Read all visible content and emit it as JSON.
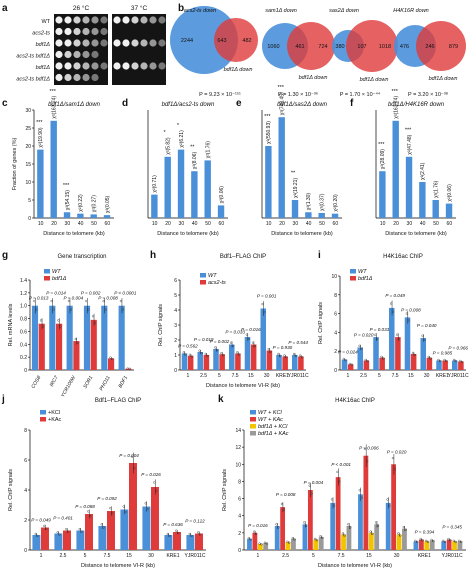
{
  "figure": "Multi-panel biology figure",
  "colors": {
    "wt": "#4a90d9",
    "mut": "#e03b3b",
    "kcl": "#4a90d9",
    "kac": "#e03b3b",
    "bdf_kcl": "#f2c400",
    "bdf_kac": "#9a9a9a"
  },
  "chart_data": [
    {
      "panel": "a",
      "type": "table",
      "temps": [
        "26 °C",
        "37 °C"
      ],
      "strains": [
        "WT",
        "acs2-ts",
        "bdf1Δ",
        "acs2-ts bdf1Δ",
        "bdf1Δ",
        "acs2-ts bdf1Δ"
      ]
    },
    {
      "panel": "b",
      "type": "venn",
      "sets": [
        {
          "left": "acs2-ts down",
          "right": "bdf1Δ down",
          "left_only": 2244,
          "overlap": 643,
          "right_only": 482,
          "p": "P = 9.23 × 10⁻¹⁵¹"
        },
        {
          "left": "sam1Δ down",
          "right": "bdf1Δ down",
          "left_only": 1060,
          "overlap": 461,
          "right_only": 724,
          "p": "P = 1.30 × 10⁻³⁶"
        },
        {
          "left": "sas2Δ down",
          "right": "bdf1Δ down",
          "left_only": 380,
          "overlap": 107,
          "right_only": 1018,
          "p": "P = 1.70 × 10⁻⁴⁴"
        },
        {
          "left": "H4K16R down",
          "right": "bdf1Δ down",
          "left_only": 476,
          "overlap": 246,
          "right_only": 879,
          "p": "P = 3.20 × 10⁻³⁸"
        }
      ]
    },
    {
      "panel": "c",
      "type": "bar",
      "title": "bdf1Δ/sam1Δ down",
      "categories": [
        "10",
        "20",
        "30",
        "40",
        "50",
        "60"
      ],
      "values": [
        19,
        27,
        1.6,
        1.2,
        1.0,
        0.8
      ],
      "chi": [
        "χ²(19.90)",
        "χ²(163.74)",
        "χ²(54.15)",
        "χ²(0.22)",
        "χ²(0.27)",
        "χ²(0.05)"
      ],
      "stars": [
        "***",
        "***",
        "***",
        "",
        "",
        ""
      ],
      "ylabel": "Fraction of genes (%)",
      "xlabel": "Distance to telomere (kb)",
      "ylim": [
        0,
        30
      ],
      "yticks": [
        "0",
        "5",
        "10",
        "15",
        "20",
        "25",
        "30"
      ]
    },
    {
      "panel": "d",
      "type": "bar",
      "title": "bdf1Δ/acs2-ts down",
      "categories": [
        "10",
        "20",
        "30",
        "40",
        "50",
        "60"
      ],
      "values": [
        6.5,
        17,
        19,
        13,
        16,
        3.5
      ],
      "chi": [
        "χ²(0.71)",
        "χ²(5.82)",
        "χ²(6.21)",
        "χ²(8.06)",
        "χ²(1.76)",
        "χ²(0.06)"
      ],
      "stars": [
        "",
        "*",
        "*",
        "**",
        "",
        ""
      ],
      "xlabel": "Distance to telomere (kb)",
      "ylim": [
        0,
        30
      ]
    },
    {
      "panel": "e",
      "type": "bar",
      "title": "bdf1Δ/sas2Δ down",
      "categories": [
        "10",
        "20",
        "30",
        "40",
        "50",
        "60"
      ],
      "values": [
        20,
        28,
        5,
        1.6,
        1.4,
        1.2
      ],
      "chi": [
        "χ²(550.93)",
        "χ²(748.45)",
        "χ²(19.21)",
        "χ²(1.30)",
        "χ²(0.37)",
        "χ²(0.20)"
      ],
      "stars": [
        "***",
        "***",
        "**",
        "",
        "",
        ""
      ],
      "xlabel": "Distance to telomere (kb)",
      "ylim": [
        0,
        30
      ]
    },
    {
      "panel": "f",
      "type": "bar",
      "title": "bdf1Δ/H4K16R down",
      "categories": [
        "10",
        "20",
        "30",
        "40",
        "50",
        "60"
      ],
      "values": [
        13,
        27,
        17,
        10,
        5,
        4
      ],
      "chi": [
        "χ²(28.09)",
        "χ²(163.74)",
        "χ²(47.48)",
        "χ²(2.41)",
        "χ²(1.76)",
        "χ²(0.06)"
      ],
      "stars": [
        "***",
        "***",
        "***",
        "",
        "",
        ""
      ],
      "xlabel": "Distance to telomere (kb)",
      "ylim": [
        0,
        30
      ]
    },
    {
      "panel": "g",
      "type": "bar",
      "title": "Gene transcription",
      "categories": [
        "COS8",
        "IRC7",
        "YCR106W",
        "SOR1",
        "PHO11",
        "BDF1"
      ],
      "series": [
        {
          "name": "WT",
          "values": [
            1,
            1,
            1,
            1,
            1,
            1
          ]
        },
        {
          "name": "bdf1Δ",
          "values": [
            0.72,
            0.72,
            0.45,
            0.78,
            0.18,
            0.02
          ]
        }
      ],
      "pvals": [
        "P = 0.013",
        "P = 0.014",
        "P = 0.004",
        "P = 0.002",
        "P = 0.008",
        "P < 0.0001"
      ],
      "ylabel": "Rel. mRNA levels",
      "ylim": [
        0,
        1.4
      ],
      "yticks": [
        "0",
        "0.2",
        "0.4",
        "0.6",
        "0.8",
        "1.0",
        "1.2",
        "1.4"
      ]
    },
    {
      "panel": "h",
      "type": "bar",
      "title": "Bdf1–FLAG ChIP",
      "categories": [
        "1",
        "2.5",
        "5",
        "7.5",
        "15",
        "30",
        "KRE1",
        "YJR011C"
      ],
      "series": [
        {
          "name": "WT",
          "values": [
            1.1,
            1.2,
            1.4,
            1.7,
            2.2,
            4.1,
            1.0,
            1.0
          ]
        },
        {
          "name": "acs2-ts",
          "values": [
            0.95,
            1.0,
            1.05,
            1.1,
            1.7,
            1.3,
            0.9,
            0.9
          ]
        }
      ],
      "pvals": [
        "P = 0.562",
        "P = 0.019",
        "P = 0.002",
        "P = 0.033",
        "P = 0.016",
        "P = 0.001",
        "P = 0.930",
        "P = 0.544"
      ],
      "ylabel": "Rel. ChIP signals",
      "xlabel": "Distance to telomere VI-R (kb)",
      "ylim": [
        0,
        6
      ],
      "yticks": [
        "0",
        "1",
        "2",
        "3",
        "4",
        "5",
        "6"
      ]
    },
    {
      "panel": "i",
      "type": "bar",
      "title": "H4K16ac ChIP",
      "categories": [
        "1",
        "2.5",
        "5",
        "7.5",
        "15",
        "30",
        "KRE1",
        "YJR011C"
      ],
      "series": [
        {
          "name": "WT",
          "values": [
            1.1,
            2.4,
            3.5,
            6.6,
            5.6,
            3.4,
            1.0,
            1.0
          ]
        },
        {
          "name": "bdf1Δ",
          "values": [
            0.6,
            1.0,
            1.3,
            3.5,
            1.7,
            1.3,
            1.0,
            0.9
          ]
        }
      ],
      "pvals": [
        "P = 0.024",
        "P = 0.020",
        "P = 0.033",
        "P = 0.049",
        "P = 0.008",
        "P = 0.040",
        "P = 0.985",
        "P = 0.966"
      ],
      "ylabel": "Rel. ChIP signals",
      "ylim": [
        0,
        10
      ],
      "yticks": [
        "0",
        "2",
        "4",
        "6",
        "8",
        "10"
      ]
    },
    {
      "panel": "j",
      "type": "bar",
      "title": "Bdf1–FLAG ChIP",
      "categories": [
        "1",
        "2.5",
        "5",
        "7.5",
        "15",
        "30",
        "KRE1",
        "YJR011C"
      ],
      "series": [
        {
          "name": "+KCl",
          "values": [
            1.0,
            1.1,
            1.3,
            1.6,
            2.7,
            2.9,
            1.0,
            1.0
          ]
        },
        {
          "name": "+KAc",
          "values": [
            1.5,
            1.3,
            2.4,
            2.6,
            5.8,
            4.2,
            1.2,
            1.1
          ]
        }
      ],
      "pvals": [
        "P = 0.049",
        "P = 0.401",
        "P = 0.088",
        "P = 0.092",
        "P = 0.004",
        "P = 0.026",
        "P = 0.636",
        "P = 0.122"
      ],
      "ylabel": "Rel. ChIP signals",
      "xlabel": "Distance to telomere VI-R (kb)",
      "ylim": [
        0,
        8
      ],
      "yticks": [
        "0",
        "2",
        "4",
        "6",
        "8"
      ]
    },
    {
      "panel": "k",
      "type": "bar",
      "title": "H4K16ac ChIP",
      "categories": [
        "1",
        "2.5",
        "5",
        "7.5",
        "15",
        "30",
        "KRE1",
        "YJR011C"
      ],
      "series": [
        {
          "name": "WT + KCl",
          "values": [
            1.3,
            2.8,
            3.0,
            5.5,
            6.5,
            5.5,
            1.0,
            1.0
          ]
        },
        {
          "name": "WT + KAc",
          "values": [
            2.0,
            5.0,
            7.0,
            8.5,
            11.0,
            10.0,
            1.2,
            1.2
          ]
        },
        {
          "name": "bdf1Δ + KCl",
          "values": [
            0.7,
            0.9,
            1.2,
            1.8,
            2.0,
            1.8,
            1.0,
            1.0
          ]
        },
        {
          "name": "bdf1Δ + KAc",
          "values": [
            0.8,
            1.3,
            1.5,
            2.8,
            3.0,
            2.5,
            1.1,
            1.0
          ]
        }
      ],
      "pvals": [
        "P = 0.016",
        "P = 0.008",
        "P = 0.004",
        "P < 0.001",
        "P = 0.006",
        "P = 0.020",
        "P = 0.394",
        "P = 0.345"
      ],
      "ylabel": "Rel. ChIP signals",
      "xlabel": "Distance to telomere VI-R (kb)",
      "ylim": [
        0,
        14
      ],
      "yticks": [
        "0",
        "2",
        "4",
        "6",
        "8",
        "10",
        "12",
        "14"
      ]
    }
  ]
}
